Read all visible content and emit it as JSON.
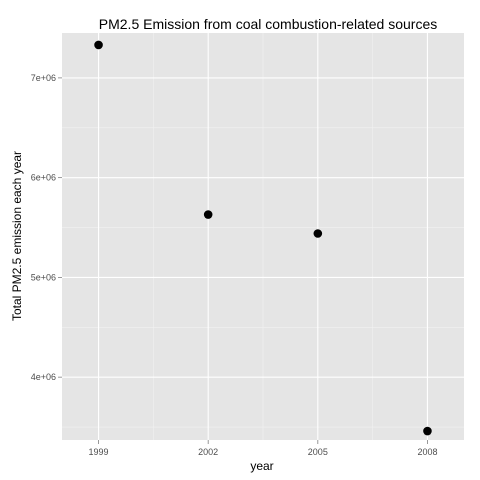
{
  "chart_data": {
    "type": "scatter",
    "title": "PM2.5 Emission from coal combustion-related sources",
    "xlabel": "year",
    "ylabel": "Total PM2.5 emission each year",
    "x_ticks": [
      1999,
      2002,
      2005,
      2008
    ],
    "y_ticks": [
      4000000,
      5000000,
      6000000,
      7000000
    ],
    "y_tick_labels": [
      "4e+06",
      "5e+06",
      "6e+06",
      "7e+06"
    ],
    "xlim": [
      1998.0,
      2009.0
    ],
    "ylim": [
      3370000,
      7450000
    ],
    "grid": true,
    "points": [
      {
        "x": 1999,
        "y": 7330000
      },
      {
        "x": 2002,
        "y": 5630000
      },
      {
        "x": 2005,
        "y": 5440000
      },
      {
        "x": 2008,
        "y": 3460000
      }
    ],
    "colors": {
      "panel_background": "#e5e5e5",
      "grid_major": "#ffffff",
      "grid_minor": "#f2f2f2",
      "point": "#000000"
    }
  }
}
